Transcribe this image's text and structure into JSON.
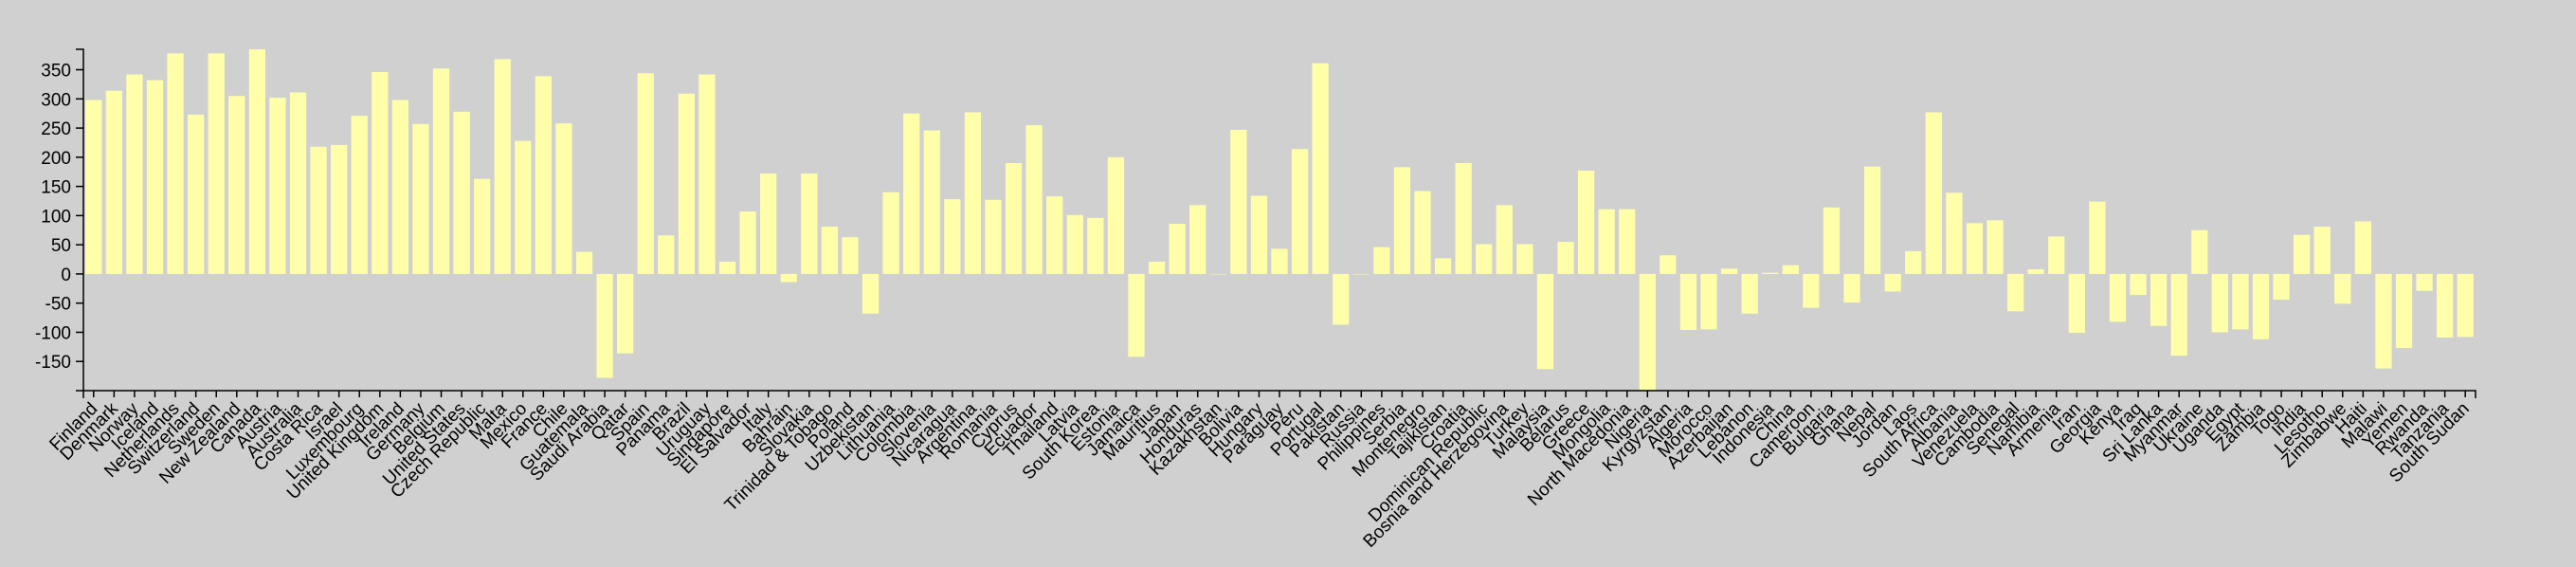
{
  "chart_data": {
    "type": "bar",
    "title": "",
    "xlabel": "",
    "ylabel": "",
    "ylim": [
      -200,
      385
    ],
    "yticks": [
      -150,
      -100,
      -50,
      0,
      50,
      100,
      150,
      200,
      250,
      300,
      350
    ],
    "categories": [
      "Finland",
      "Denmark",
      "Norway",
      "Iceland",
      "Netherlands",
      "Switzerland",
      "Sweden",
      "New Zealand",
      "Canada",
      "Austria",
      "Australia",
      "Costa Rica",
      "Israel",
      "Luxembourg",
      "United Kingdom",
      "Ireland",
      "Germany",
      "Belgium",
      "United States",
      "Czech Republic",
      "Malta",
      "Mexico",
      "France",
      "Chile",
      "Guatemala",
      "Saudi Arabia",
      "Qatar",
      "Spain",
      "Panama",
      "Brazil",
      "Uruguay",
      "Singapore",
      "El Salvador",
      "Italy",
      "Bahrain",
      "Slovakia",
      "Trinidad & Tobago",
      "Poland",
      "Uzbekistan",
      "Lithuania",
      "Colombia",
      "Slovenia",
      "Nicaragua",
      "Argentina",
      "Romania",
      "Cyprus",
      "Ecuador",
      "Thailand",
      "Latvia",
      "South Korea",
      "Estonia",
      "Jamaica",
      "Mauritius",
      "Japan",
      "Honduras",
      "Kazakhstan",
      "Bolivia",
      "Hungary",
      "Paraguay",
      "Peru",
      "Portugal",
      "Pakistan",
      "Russia",
      "Philippines",
      "Serbia",
      "Montenegro",
      "Tajikistan",
      "Croatia",
      "Dominican Republic",
      "Bosnia and Herzegovina",
      "Turkey",
      "Malaysia",
      "Belarus",
      "Greece",
      "Mongolia",
      "North Macedonia",
      "Nigeria",
      "Kyrgyzstan",
      "Algeria",
      "Morocco",
      "Azerbaijan",
      "Lebanon",
      "Indonesia",
      "China",
      "Cameroon",
      "Bulgaria",
      "Ghana",
      "Nepal",
      "Jordan",
      "Laos",
      "South Africa",
      "Albania",
      "Venezuela",
      "Cambodia",
      "Senegal",
      "Namibia",
      "Armenia",
      "Iran",
      "Georgia",
      "Kenya",
      "Iraq",
      "Sri Lanka",
      "Myanmar",
      "Ukraine",
      "Uganda",
      "Egypt",
      "Zambia",
      "Togo",
      "India",
      "Lesotho",
      "Zimbabwe",
      "Haiti",
      "Malawi",
      "Yemen",
      "Rwanda",
      "Tanzania",
      "South Sudan"
    ],
    "values": [
      298,
      314,
      342,
      332,
      378,
      273,
      378,
      305,
      385,
      302,
      311,
      218,
      221,
      271,
      346,
      298,
      257,
      352,
      278,
      163,
      368,
      228,
      339,
      258,
      38,
      -178,
      -136,
      344,
      66,
      309,
      342,
      21,
      107,
      172,
      -14,
      172,
      81,
      63,
      -68,
      140,
      275,
      246,
      128,
      277,
      127,
      190,
      255,
      133,
      101,
      96,
      200,
      -142,
      21,
      86,
      118,
      0,
      247,
      134,
      43,
      214,
      361,
      -87,
      0,
      46,
      183,
      142,
      27,
      190,
      51,
      118,
      51,
      -163,
      55,
      177,
      111,
      111,
      -199,
      32,
      -96,
      -95,
      9,
      -68,
      2,
      15,
      -58,
      114,
      -49,
      184,
      -30,
      39,
      277,
      139,
      87,
      92,
      -64,
      8,
      64,
      -101,
      124,
      -82,
      -36,
      -89,
      -140,
      75,
      -100,
      -95,
      -112,
      -44,
      67,
      81,
      -51,
      90,
      -162,
      -127,
      -29,
      -109,
      -108
    ],
    "colors": {
      "bar": "#ffffaa",
      "background": "#d0d0d0",
      "axis": "#000000"
    }
  }
}
